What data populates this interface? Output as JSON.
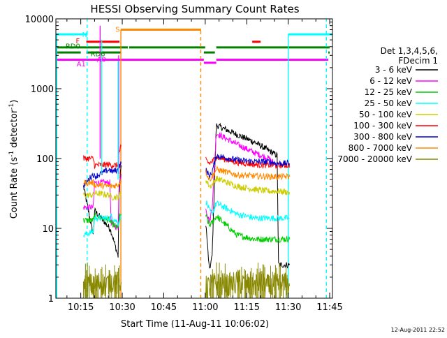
{
  "chart_data": {
    "type": "line",
    "title": "HESSI Observing Summary Count Rates",
    "xlabel": "Start Time (11-Aug-11 10:06:02)",
    "ylabel": "Count Rate (s⁻¹ detector⁻¹)",
    "ylabel_parts": {
      "base": "Count Rate (s",
      "sup1": "-1",
      "mid": " detector",
      "sup2": "-1",
      "end": ")"
    },
    "y_scale": "log",
    "xlim_minutes": [
      606.0,
      706.0
    ],
    "ylim": [
      1,
      10000
    ],
    "x_ticks": [
      {
        "t": 615,
        "label": "10:15"
      },
      {
        "t": 630,
        "label": "10:30"
      },
      {
        "t": 645,
        "label": "10:45"
      },
      {
        "t": 660,
        "label": "11:00"
      },
      {
        "t": 675,
        "label": "11:15"
      },
      {
        "t": 690,
        "label": "11:30"
      },
      {
        "t": 705,
        "label": "11:45"
      }
    ],
    "y_ticks": [
      {
        "v": 1,
        "label": "1"
      },
      {
        "v": 10,
        "label": "10"
      },
      {
        "v": 100,
        "label": "100"
      },
      {
        "v": 1000,
        "label": "1000"
      },
      {
        "v": 10000,
        "label": "10000"
      }
    ],
    "legend": {
      "header": [
        "Det 1,3,4,5,6,",
        "FDecim 1"
      ],
      "placement": "right"
    },
    "series": [
      {
        "name": "3 - 6 keV",
        "color": "#000000",
        "segments": [
          {
            "t": [
              616.0,
              619.5,
              620.0,
              625.5,
              626.0,
              628.5,
              628.8,
              629.3,
              629.6
            ],
            "v": [
              40,
              8,
              18,
              10,
              9,
              4,
              25,
              60,
              80
            ]
          },
          {
            "t": [
              660.2,
              661.5,
              662.5,
              664.0,
              671.5,
              678.0,
              683.0,
              686.0,
              686.5,
              690.5
            ],
            "v": [
              12,
              2.5,
              4,
              300,
              220,
              170,
              130,
              110,
              3,
              3
            ]
          }
        ]
      },
      {
        "name": "6 - 12 keV",
        "color": "#ff00ff",
        "segments": [
          {
            "t": [
              616.0,
              619.5,
              620.0,
              625.5,
              626.0,
              628.5,
              628.8,
              629.6
            ],
            "v": [
              20,
              20,
              45,
              45,
              12,
              10,
              40,
              60
            ]
          },
          {
            "t": [
              660.2,
              661.5,
              662.5,
              664.0,
              671.5,
              678.0,
              683.0,
              685.0,
              686.0
            ],
            "v": [
              20,
              12,
              20,
              230,
              160,
              120,
              100,
              85,
              80
            ]
          }
        ]
      },
      {
        "name": "12 - 25 keV",
        "color": "#00cc00",
        "segments": [
          {
            "t": [
              616.0,
              619.5,
              620.0,
              625.5,
              626.0,
              628.5,
              629.0,
              629.6
            ],
            "v": [
              13,
              13,
              15,
              13,
              12,
              10,
              14,
              16
            ]
          },
          {
            "t": [
              660.2,
              661.5,
              662.5,
              664.0,
              671.5,
              678.0,
              683.0,
              686.0,
              690.0,
              690.5
            ],
            "v": [
              15,
              11,
              12,
              15,
              8,
              7,
              7,
              7,
              7,
              7
            ]
          }
        ]
      },
      {
        "name": "25 - 50 keV",
        "color": "#00ffff",
        "segments": [
          {
            "t": [
              616.0,
              619.5,
              620.0,
              625.5,
              626.0,
              628.5,
              629.0,
              629.6
            ],
            "v": [
              8,
              9,
              14,
              14,
              15,
              12,
              13,
              15
            ]
          },
          {
            "t": [
              660.2,
              661.5,
              662.5,
              664.0,
              671.5,
              678.0,
              683.0,
              686.0,
              690.0,
              690.5
            ],
            "v": [
              25,
              18,
              16,
              23,
              16,
              14,
              14,
              14,
              14,
              14
            ]
          }
        ]
      },
      {
        "name": "50 - 100 keV",
        "color": "#cccc00",
        "segments": [
          {
            "t": [
              616.0,
              619.5,
              620.0,
              625.5,
              626.0,
              628.5,
              629.0,
              629.6
            ],
            "v": [
              30,
              30,
              32,
              30,
              28,
              28,
              30,
              32
            ]
          },
          {
            "t": [
              660.2,
              661.5,
              662.5,
              664.0,
              671.5,
              678.0,
              683.0,
              686.0,
              690.0,
              690.5
            ],
            "v": [
              50,
              40,
              42,
              52,
              40,
              36,
              34,
              34,
              33,
              33
            ]
          }
        ]
      },
      {
        "name": "100 - 300 keV",
        "color": "#ff0000",
        "segments": [
          {
            "t": [
              616.0,
              619.5,
              620.0,
              625.5,
              626.0,
              628.5,
              628.8,
              629.6
            ],
            "v": [
              100,
              100,
              80,
              82,
              80,
              80,
              120,
              150
            ]
          },
          {
            "t": [
              660.2,
              661.5,
              662.5,
              664.0,
              671.5,
              678.0,
              683.0,
              686.0,
              690.0,
              690.5
            ],
            "v": [
              95,
              85,
              90,
              105,
              88,
              82,
              80,
              80,
              80,
              80
            ]
          }
        ]
      },
      {
        "name": "300 - 800 keV",
        "color": "#0000cc",
        "segments": [
          {
            "t": [
              616.0,
              619.5,
              620.0,
              625.5,
              626.0,
              628.5,
              629.0,
              629.6
            ],
            "v": [
              40,
              60,
              55,
              70,
              65,
              68,
              80,
              85
            ]
          },
          {
            "t": [
              660.2,
              661.5,
              662.5,
              664.0,
              671.5,
              678.0,
              683.0,
              686.0,
              690.0,
              690.5
            ],
            "v": [
              70,
              55,
              65,
              110,
              95,
              90,
              90,
              85,
              85,
              85
            ]
          }
        ]
      },
      {
        "name": "800 - 7000 keV",
        "color": "#ff8800",
        "segments": [
          {
            "t": [
              616.0,
              619.5,
              620.0,
              625.5,
              626.0,
              628.5,
              629.0,
              629.6
            ],
            "v": [
              45,
              45,
              42,
              40,
              40,
              42,
              45,
              48
            ]
          },
          {
            "t": [
              660.2,
              661.5,
              662.5,
              664.0,
              671.5,
              678.0,
              683.0,
              686.0,
              690.0,
              690.5
            ],
            "v": [
              65,
              50,
              55,
              70,
              58,
              56,
              55,
              55,
              55,
              55
            ]
          }
        ]
      },
      {
        "name": "7000 - 20000 keV",
        "color": "#888800",
        "segments": [
          {
            "t": [
              616.0,
              618.0,
              620.0,
              622.0,
              624.0,
              626.0,
              628.0,
              629.6
            ],
            "v": [
              1.5,
              1.6,
              1.4,
              1.7,
              1.5,
              1.8,
              1.6,
              1.7
            ]
          },
          {
            "t": [
              660.2,
              664.0,
              668.0,
              672.0,
              676.0,
              680.0,
              684.0,
              688.0,
              690.5
            ],
            "v": [
              1.4,
              1.6,
              1.5,
              1.7,
              1.5,
              1.6,
              1.4,
              1.6,
              1.5
            ]
          }
        ]
      }
    ],
    "flag_bars": [
      {
        "label": "N",
        "color": "#00ffff",
        "t_start": 606.0,
        "t_end": 617.5,
        "level": 6000,
        "label_t": 615.5,
        "label_level": 6000
      },
      {
        "label": "",
        "color": "#00ffff",
        "t_start": 690.0,
        "t_end": 706.0,
        "level": 6000
      },
      {
        "label": "S",
        "color": "#ff8800",
        "t_start": 629.5,
        "t_end": 658.5,
        "level": 7000,
        "label_t": 627.5,
        "label_level": 7200
      },
      {
        "label": "F",
        "color": "#ff0000",
        "t_start": 617.0,
        "t_end": 629.0,
        "level": 4700,
        "label_t": 613.2,
        "label_level": 4900
      },
      {
        "label": "",
        "color": "#ff0000",
        "t_start": 677.0,
        "t_end": 680.0,
        "level": 4700
      },
      {
        "label": "RD0",
        "color": "#008000",
        "t_start": 606.0,
        "t_end": 632.0,
        "level": 3900,
        "label_t": 609.5,
        "label_level": 4100
      },
      {
        "label": "",
        "color": "#008000",
        "t_start": 632.5,
        "t_end": 660.0,
        "level": 3900
      },
      {
        "label": "",
        "color": "#008000",
        "t_start": 664.0,
        "t_end": 705.0,
        "level": 3900
      },
      {
        "label": "",
        "color": "#008000",
        "t_start": 606.0,
        "t_end": 615.0,
        "level": 3300
      },
      {
        "label": "RD6",
        "color": "#008000",
        "t_start": 617.0,
        "t_end": 629.5,
        "level": 3300,
        "label_t": 618.5,
        "label_level": 3200
      },
      {
        "label": "",
        "color": "#008000",
        "t_start": 659.5,
        "t_end": 663.5,
        "level": 3300
      },
      {
        "label": "",
        "color": "#008000",
        "t_start": 704.5,
        "t_end": 705.0,
        "level": 3300
      },
      {
        "label": "A1",
        "color": "#ff00ff",
        "t_start": 606.0,
        "t_end": 659.5,
        "level": 2600,
        "label_t": 613.5,
        "label_level": 2300
      },
      {
        "label": "",
        "color": "#ff00ff",
        "t_start": 659.5,
        "t_end": 664.0,
        "level": 2350
      },
      {
        "label": "",
        "color": "#ff00ff",
        "t_start": 664.0,
        "t_end": 704.5,
        "level": 2600
      },
      {
        "label": "A0",
        "color": "#ff00ff",
        "t_start": 622.0,
        "t_end": 622.0,
        "level": 2700,
        "label_t": 620.8,
        "label_level": 2650
      }
    ],
    "vertical_markers": [
      {
        "t": 606.3,
        "color": "#00ffff",
        "style": "solid",
        "v_from": 1,
        "v_to": 6000
      },
      {
        "t": 617.3,
        "color": "#00ffff",
        "style": "dashed",
        "v_from": 1,
        "v_to": 10000
      },
      {
        "t": 690.0,
        "color": "#00ffff",
        "style": "solid",
        "v_from": 1,
        "v_to": 6000
      },
      {
        "t": 703.8,
        "color": "#00ffff",
        "style": "dashed",
        "v_from": 1,
        "v_to": 10000
      },
      {
        "t": 629.5,
        "color": "#ff8800",
        "style": "solid",
        "v_from": 1,
        "v_to": 7000
      },
      {
        "t": 658.4,
        "color": "#ff8800",
        "style": "dashed",
        "v_from": 1,
        "v_to": 7000
      }
    ],
    "spikes": [
      {
        "t": 622.0,
        "color": "#ff00ff",
        "v_from": 100,
        "v_to": 8000
      },
      {
        "t": 622.6,
        "color": "#00ffff",
        "v_from": 60,
        "v_to": 5000
      },
      {
        "t": 628.7,
        "color": "#ff00ff",
        "v_from": 60,
        "v_to": 3000
      },
      {
        "t": 628.5,
        "color": "#00ffff",
        "v_from": 50,
        "v_to": 2500
      }
    ],
    "footer_timestamp": "12-Aug-2011 22:52"
  }
}
